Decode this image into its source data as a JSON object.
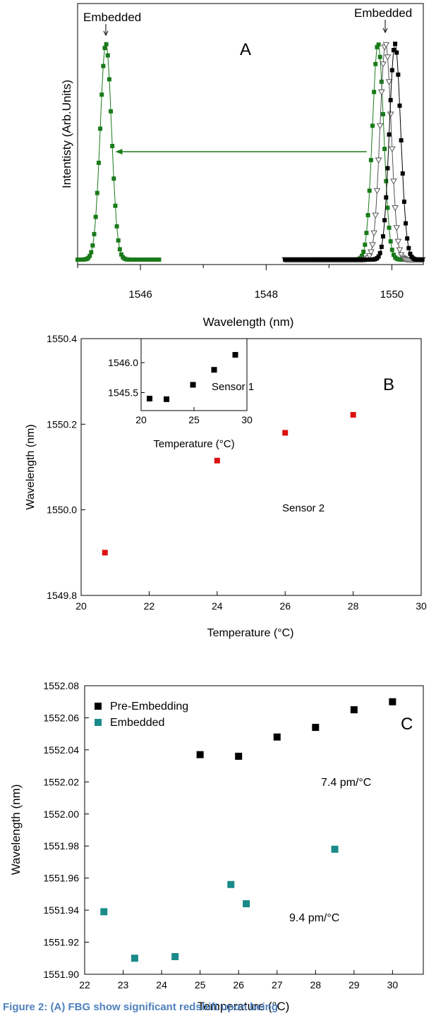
{
  "chart_data": [
    {
      "type": "line",
      "panel_label": "A",
      "xlabel": "Wavelength (nm)",
      "ylabel": "Intentisty (Arb.Units)",
      "xlim": [
        1545.0,
        1550.5
      ],
      "x_ticks": [
        1546,
        1548,
        1550
      ],
      "annotations": [
        "Embedded",
        "Embedded"
      ],
      "arrow": {
        "from": 1549.6,
        "to": 1545.6
      },
      "colors": {
        "green": "#1a7a1a",
        "black": "#000000",
        "gray": "#555555"
      },
      "series": [
        {
          "color": "green",
          "marker": "square",
          "center": 1545.45,
          "width": 0.09,
          "x_start": 1545.0,
          "x_end": 1546.3
        },
        {
          "color": "green",
          "marker": "square",
          "center": 1549.78,
          "width": 0.09,
          "x_start": 1548.3,
          "x_end": 1550.5
        },
        {
          "color": "gray",
          "marker": "triangle-down",
          "center": 1549.9,
          "width": 0.09,
          "x_start": 1548.3,
          "x_end": 1550.5
        },
        {
          "color": "black",
          "marker": "square",
          "center": 1550.05,
          "width": 0.09,
          "x_start": 1548.3,
          "x_end": 1550.5
        }
      ]
    },
    {
      "type": "scatter",
      "panel_label": "B",
      "xlabel": "Temperature (°C)",
      "ylabel": "Wavelength (nm)",
      "xlim": [
        20,
        30
      ],
      "ylim": [
        1549.8,
        1550.4
      ],
      "x_ticks": [
        "20",
        "22",
        "24",
        "26",
        "28",
        "30"
      ],
      "y_ticks": [
        "1549.8",
        "1550.0",
        "1550.2",
        "1550.4"
      ],
      "annotation": "Sensor 2",
      "color": "#dd1111",
      "points": [
        [
          20.7,
          1549.9
        ],
        [
          24.0,
          1550.115
        ],
        [
          26.0,
          1550.18
        ],
        [
          28.0,
          1550.222
        ]
      ],
      "inset": {
        "xlabel": "Temperature (°C)",
        "xlim": [
          20,
          30
        ],
        "ylim": [
          1545.2,
          1546.4
        ],
        "x_ticks": [
          "20",
          "25",
          "30"
        ],
        "y_ticks": [
          "1545.5",
          "1546.0"
        ],
        "annotation": "Sensor 1",
        "color": "#000000",
        "points": [
          [
            20.8,
            1545.4
          ],
          [
            22.4,
            1545.39
          ],
          [
            24.9,
            1545.63
          ],
          [
            26.9,
            1545.88
          ],
          [
            28.9,
            1546.13
          ]
        ]
      }
    },
    {
      "type": "scatter",
      "panel_label": "C",
      "xlabel": "Temperature (°C)",
      "ylabel": "Wavelength (nm)",
      "xlim": [
        22,
        30.8
      ],
      "ylim": [
        1551.9,
        1552.08
      ],
      "x_ticks": [
        "22",
        "23",
        "24",
        "25",
        "26",
        "27",
        "28",
        "29",
        "30"
      ],
      "y_ticks": [
        "1551.90",
        "1551.92",
        "1551.94",
        "1551.96",
        "1551.98",
        "1552.00",
        "1552.02",
        "1552.04",
        "1552.06",
        "1552.08"
      ],
      "annotations": [
        "7.4 pm/°C",
        "9.4 pm/°C"
      ],
      "legend": {
        "placement": "top-left"
      },
      "series": [
        {
          "name": "Pre-Embedding",
          "color": "#000000",
          "points": [
            [
              25,
              1552.037
            ],
            [
              26,
              1552.036
            ],
            [
              27,
              1552.048
            ],
            [
              28,
              1552.054
            ],
            [
              29,
              1552.065
            ],
            [
              30,
              1552.07
            ]
          ]
        },
        {
          "name": "Embedded",
          "color": "#1a8a8a",
          "points": [
            [
              22.5,
              1551.939
            ],
            [
              23.3,
              1551.91
            ],
            [
              24.35,
              1551.911
            ],
            [
              25.8,
              1551.956
            ],
            [
              26.2,
              1551.944
            ],
            [
              28.5,
              1551.978
            ]
          ]
        }
      ]
    }
  ],
  "caption": "Figure 2: (A) FBG show significant redshift upon being"
}
